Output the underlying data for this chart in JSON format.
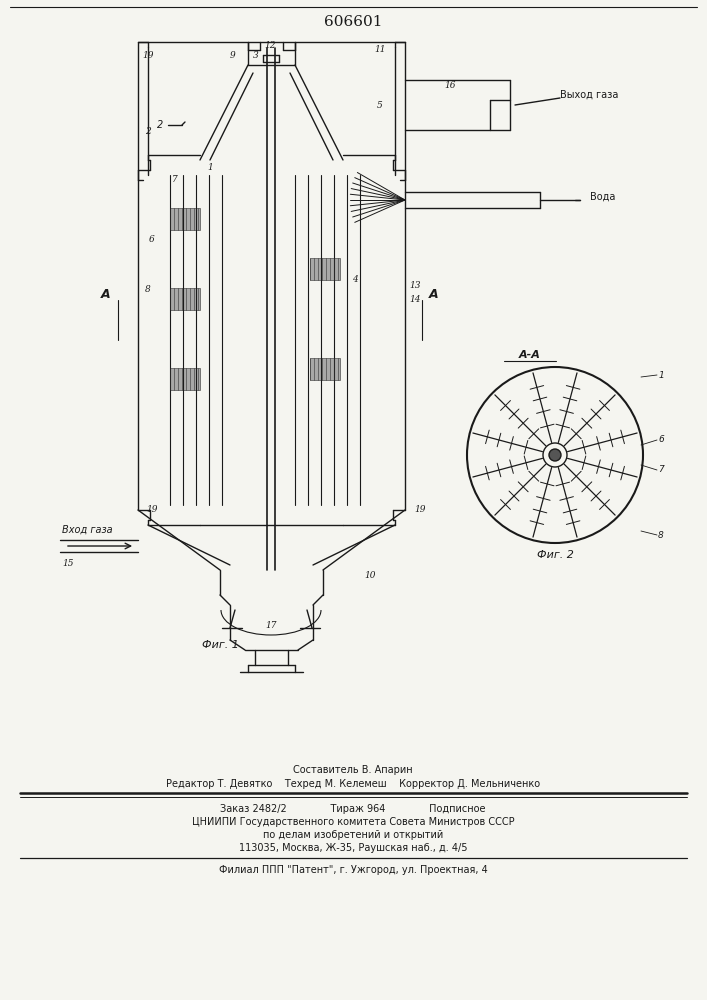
{
  "title": "606601",
  "bg_color": "#f5f5f0",
  "line_color": "#1a1a1a",
  "footer_lines": [
    "Составитель В. Апарин",
    "Редактор Т. Девятко    Техред М. Келемеш    Корректор Д. Мельниченко",
    "Заказ 2482/2              Тираж 964              Подписное",
    "ЦНИИПИ Государственного комитета Совета Министров СССР",
    "по делам изобретений и открытий",
    "113035, Москва, Ж-35, Раушская наб., д. 4/5",
    "Филиал ППП \"Патент\", г. Ужгород, ул. Проектная, 4"
  ]
}
